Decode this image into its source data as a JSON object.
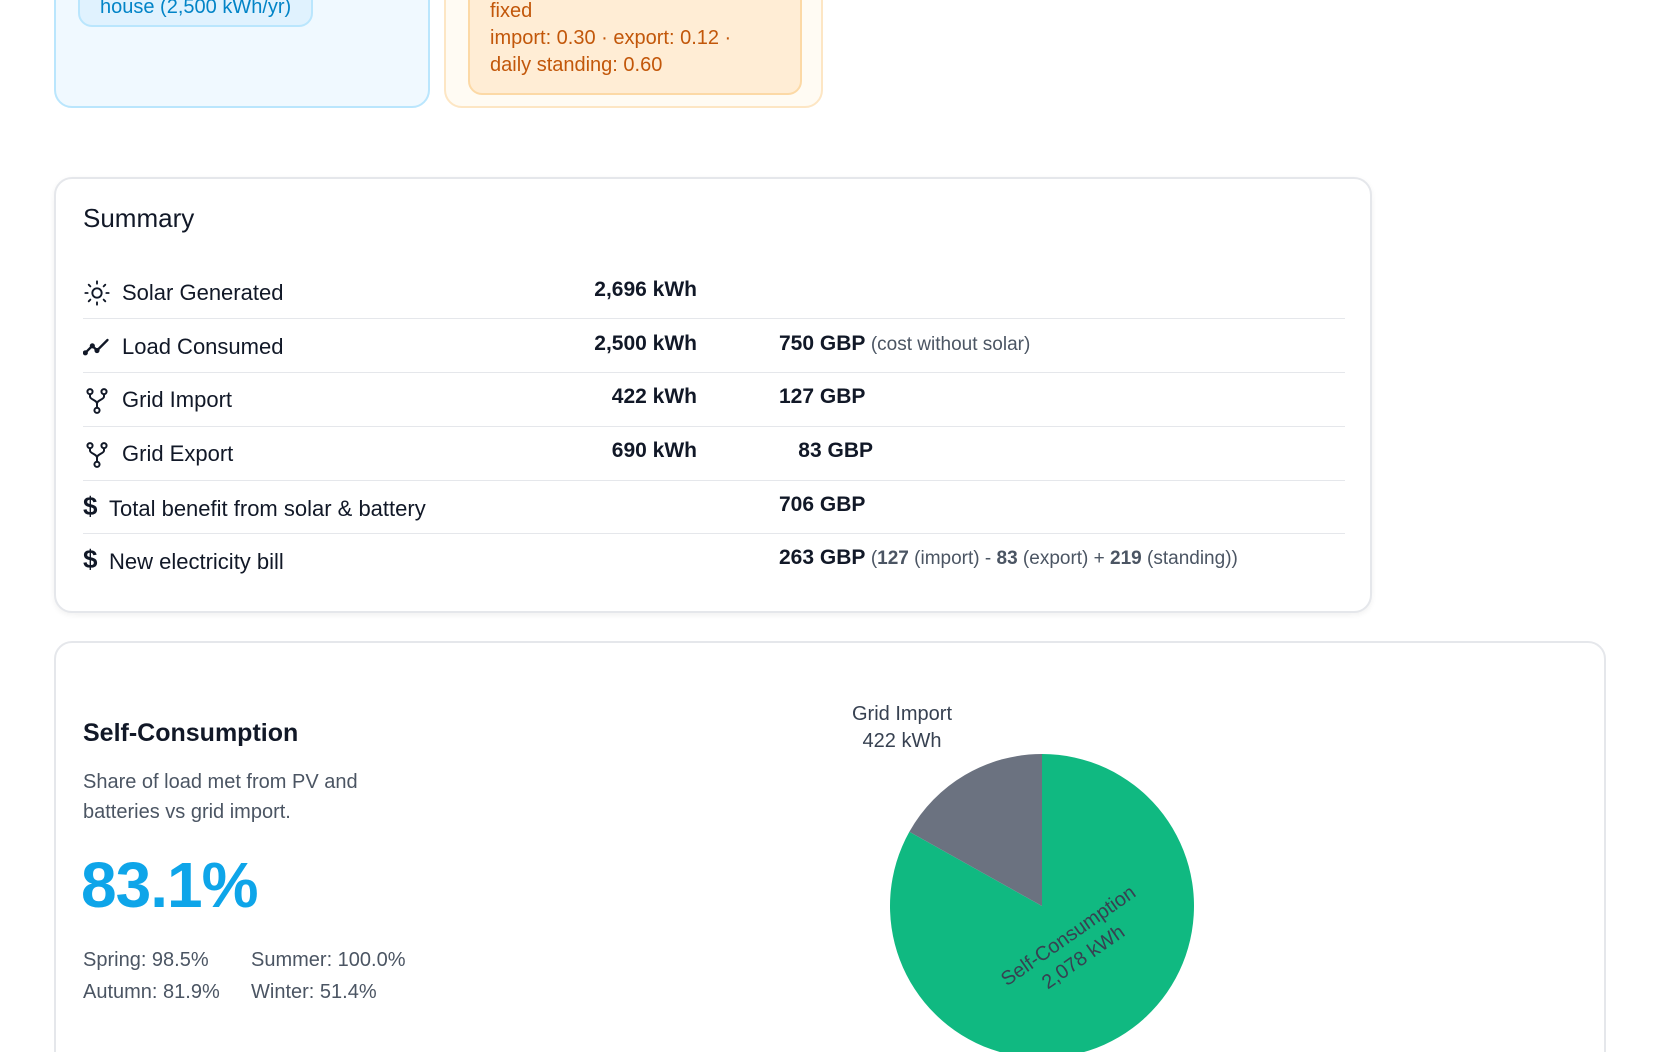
{
  "top_cards": {
    "house_chip": "house (2,500 kWh/yr)",
    "tariff_name": "fixed",
    "tariff_rates": "import: 0.30 · export: 0.12 ·",
    "tariff_standing": "daily standing: 0.60"
  },
  "summary": {
    "title": "Summary",
    "rows": [
      {
        "icon": "sun-icon",
        "label": "Solar Generated",
        "kwh": "2,696 kWh",
        "gbp": "",
        "note": ""
      },
      {
        "icon": "trend-line-icon",
        "label": "Load Consumed",
        "kwh": "2,500 kWh",
        "gbp": "750 GBP",
        "note": "(cost without solar)"
      },
      {
        "icon": "fork-icon",
        "label": "Grid Import",
        "kwh": "422 kWh",
        "gbp": "127 GBP",
        "note": ""
      },
      {
        "icon": "fork-icon",
        "label": "Grid Export",
        "kwh": "690 kWh",
        "gbp": "83 GBP",
        "note": ""
      }
    ],
    "benefit": {
      "icon": "$",
      "label": "Total benefit from solar & battery",
      "gbp": "706 GBP"
    },
    "bill": {
      "icon": "$",
      "label": "New electricity bill",
      "gbp": "263 GBP",
      "import_value": "127",
      "import_label": "(import) -",
      "export_value": "83",
      "export_label": "(export) +",
      "standing_value": "219",
      "standing_label": "(standing))"
    }
  },
  "self_consumption": {
    "title": "Self-Consumption",
    "description": "Share of load met from PV and batteries vs grid import.",
    "percent": "83.1%",
    "seasons": {
      "spring": "Spring: 98.5%",
      "summer": "Summer: 100.0%",
      "autumn": "Autumn: 81.9%",
      "winter": "Winter: 51.4%"
    }
  },
  "chart_data": {
    "type": "pie",
    "slices": [
      {
        "label": "Self-Consumption",
        "value": 2078,
        "value_label": "2,078 kWh",
        "color": "#10b981"
      },
      {
        "label": "Grid Import",
        "value": 422,
        "value_label": "422 kWh",
        "color": "#6b7280"
      }
    ]
  },
  "colors": {
    "accent": "#0ea5e9",
    "self_consumption": "#10b981",
    "grid_import": "#6b7280"
  }
}
